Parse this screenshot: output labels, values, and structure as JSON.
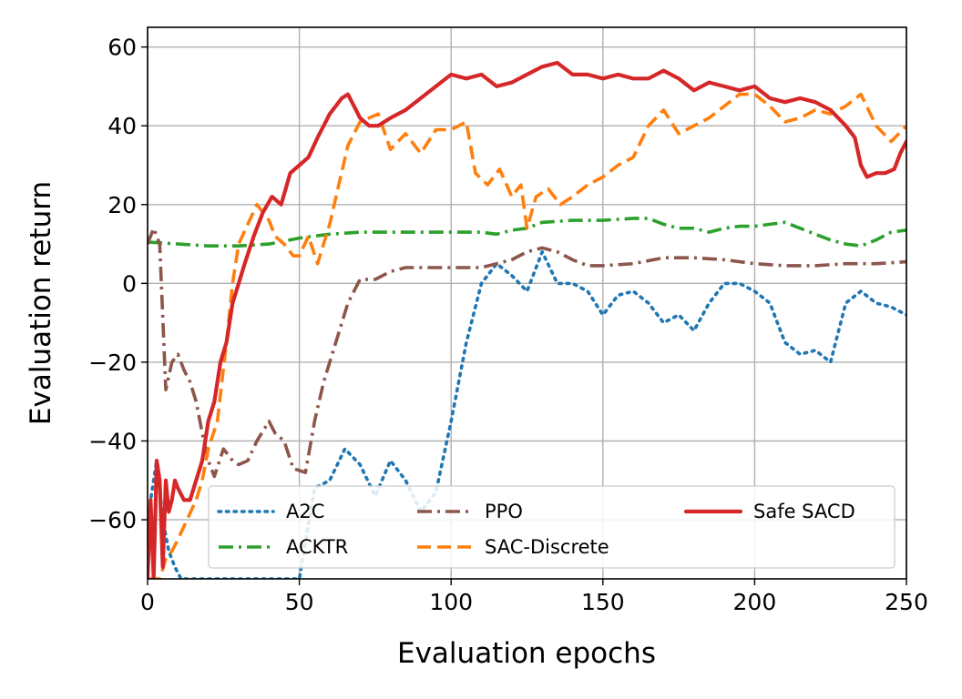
{
  "chart_data": {
    "type": "line",
    "title": "",
    "xlabel": "Evaluation epochs",
    "ylabel": "Evaluation return",
    "xlim": [
      0,
      250
    ],
    "ylim": [
      -75,
      65
    ],
    "xticks": [
      0,
      50,
      100,
      150,
      200,
      250
    ],
    "yticks": [
      -60,
      -40,
      -20,
      0,
      20,
      40,
      60
    ],
    "xtick_labels": [
      "0",
      "50",
      "100",
      "150",
      "200",
      "250"
    ],
    "ytick_labels": [
      "−60",
      "−40",
      "−20",
      "0",
      "20",
      "40",
      "60"
    ],
    "grid": true,
    "legend_position": "lower-center",
    "series": [
      {
        "name": "A2C",
        "color": "#1f77b4",
        "style": "dotted",
        "x": [
          0,
          3,
          5,
          7,
          9,
          11,
          13,
          15,
          20,
          30,
          40,
          50,
          55,
          60,
          65,
          70,
          75,
          80,
          85,
          90,
          95,
          100,
          105,
          110,
          115,
          120,
          125,
          130,
          135,
          140,
          145,
          150,
          155,
          160,
          165,
          170,
          175,
          180,
          185,
          190,
          195,
          200,
          205,
          210,
          215,
          220,
          225,
          230,
          235,
          240,
          245,
          250
        ],
        "y": [
          -60,
          -45,
          -60,
          -68,
          -72,
          -75,
          -75,
          -75,
          -75,
          -75,
          -75,
          -75,
          -52,
          -50,
          -42,
          -46,
          -54,
          -45,
          -50,
          -58,
          -53,
          -35,
          -15,
          0,
          5,
          2,
          -2,
          8,
          0,
          0,
          -2,
          -8,
          -3,
          -2,
          -5,
          -10,
          -8,
          -12,
          -5,
          0,
          0,
          -2,
          -5,
          -15,
          -18,
          -17,
          -20,
          -5,
          -2,
          -5,
          -6,
          -8
        ]
      },
      {
        "name": "ACKTR",
        "color": "#2ca02c",
        "style": "dashdot",
        "x": [
          0,
          10,
          20,
          30,
          40,
          50,
          60,
          70,
          80,
          90,
          100,
          110,
          115,
          120,
          125,
          130,
          140,
          150,
          160,
          165,
          170,
          175,
          180,
          185,
          190,
          195,
          200,
          205,
          210,
          215,
          220,
          225,
          230,
          235,
          240,
          245,
          250
        ],
        "y": [
          10.5,
          10,
          9.5,
          9.5,
          10,
          11.5,
          12.5,
          13,
          13,
          13,
          13,
          13,
          12.5,
          13.5,
          14,
          15.5,
          16,
          16,
          16.5,
          16.5,
          15,
          14,
          14,
          13,
          14,
          14.5,
          14.5,
          15,
          15.5,
          14,
          12.5,
          11,
          10,
          9.5,
          11,
          13,
          13.5
        ]
      },
      {
        "name": "PPO",
        "color": "#8c564b",
        "style": "dashdot",
        "x": [
          0,
          2,
          4,
          6,
          8,
          10,
          12,
          14,
          16,
          18,
          20,
          22,
          25,
          28,
          30,
          33,
          36,
          40,
          42,
          45,
          48,
          52,
          55,
          58,
          62,
          66,
          70,
          72,
          75,
          80,
          85,
          90,
          95,
          100,
          105,
          110,
          115,
          120,
          125,
          130,
          135,
          140,
          145,
          150,
          160,
          170,
          180,
          190,
          200,
          210,
          220,
          230,
          240,
          250
        ],
        "y": [
          10,
          14,
          10,
          -27,
          -20,
          -18,
          -22,
          -25,
          -30,
          -38,
          -45,
          -49,
          -42,
          -45,
          -46,
          -45,
          -40,
          -35,
          -38,
          -40,
          -47,
          -48,
          -35,
          -25,
          -15,
          -5,
          1,
          1,
          1,
          3,
          4,
          4,
          4,
          4,
          4,
          4,
          5,
          6,
          8,
          9,
          8,
          6,
          4.5,
          4.5,
          5,
          6.5,
          6.5,
          6,
          5,
          4.5,
          4.5,
          5,
          5,
          5.5
        ]
      },
      {
        "name": "SAC-Discrete",
        "color": "#ff7f0e",
        "style": "dashed",
        "x": [
          0,
          2,
          4,
          6,
          8,
          10,
          13,
          16,
          18,
          20,
          23,
          26,
          28,
          30,
          33,
          36,
          40,
          42,
          45,
          48,
          50,
          53,
          56,
          60,
          63,
          66,
          70,
          73,
          76,
          80,
          85,
          90,
          95,
          100,
          105,
          108,
          112,
          116,
          120,
          123,
          125,
          128,
          132,
          136,
          140,
          145,
          150,
          155,
          160,
          165,
          170,
          175,
          180,
          185,
          190,
          195,
          200,
          205,
          210,
          215,
          220,
          225,
          230,
          235,
          240,
          245,
          250
        ],
        "y": [
          -75,
          -75,
          -75,
          -70,
          -68,
          -65,
          -60,
          -55,
          -50,
          -42,
          -35,
          -15,
          0,
          10,
          15,
          20,
          16,
          12,
          10,
          7,
          7,
          12,
          5,
          15,
          25,
          35,
          41,
          42,
          43,
          34,
          38,
          33,
          39,
          39,
          41,
          28,
          25,
          29,
          22,
          25,
          14,
          22,
          24,
          20,
          22,
          25,
          27,
          30,
          32,
          40,
          44,
          38,
          40,
          42,
          45,
          48,
          48,
          45,
          41,
          42,
          44,
          43,
          45,
          48,
          40,
          36,
          40
        ]
      },
      {
        "name": "Safe SACD",
        "color": "#d62728",
        "style": "solid",
        "x": [
          0,
          1,
          2,
          3,
          4,
          5,
          6,
          7,
          8,
          9,
          10,
          12,
          14,
          16,
          18,
          20,
          22,
          24,
          26,
          28,
          30,
          32,
          35,
          38,
          41,
          44,
          47,
          50,
          53,
          56,
          58,
          60,
          62,
          64,
          66,
          68,
          70,
          73,
          76,
          80,
          85,
          90,
          95,
          100,
          105,
          110,
          115,
          120,
          125,
          130,
          135,
          140,
          145,
          150,
          155,
          160,
          165,
          170,
          175,
          180,
          185,
          190,
          195,
          200,
          205,
          210,
          215,
          220,
          225,
          230,
          233,
          235,
          237,
          240,
          243,
          246,
          248,
          250
        ],
        "y": [
          -75,
          -55,
          -75,
          -45,
          -50,
          -72,
          -50,
          -58,
          -55,
          -50,
          -52,
          -55,
          -55,
          -50,
          -45,
          -35,
          -30,
          -20,
          -15,
          -5,
          0,
          5,
          12,
          18,
          22,
          20,
          28,
          30,
          32,
          37,
          40,
          43,
          45,
          47,
          48,
          45,
          42,
          40,
          40,
          42,
          44,
          47,
          50,
          53,
          52,
          53,
          50,
          51,
          53,
          55,
          56,
          53,
          53,
          52,
          53,
          52,
          52,
          54,
          52,
          49,
          51,
          50,
          49,
          50,
          47,
          46,
          47,
          46,
          44,
          40,
          37,
          30,
          27,
          28,
          28,
          29,
          33,
          36
        ]
      }
    ]
  }
}
